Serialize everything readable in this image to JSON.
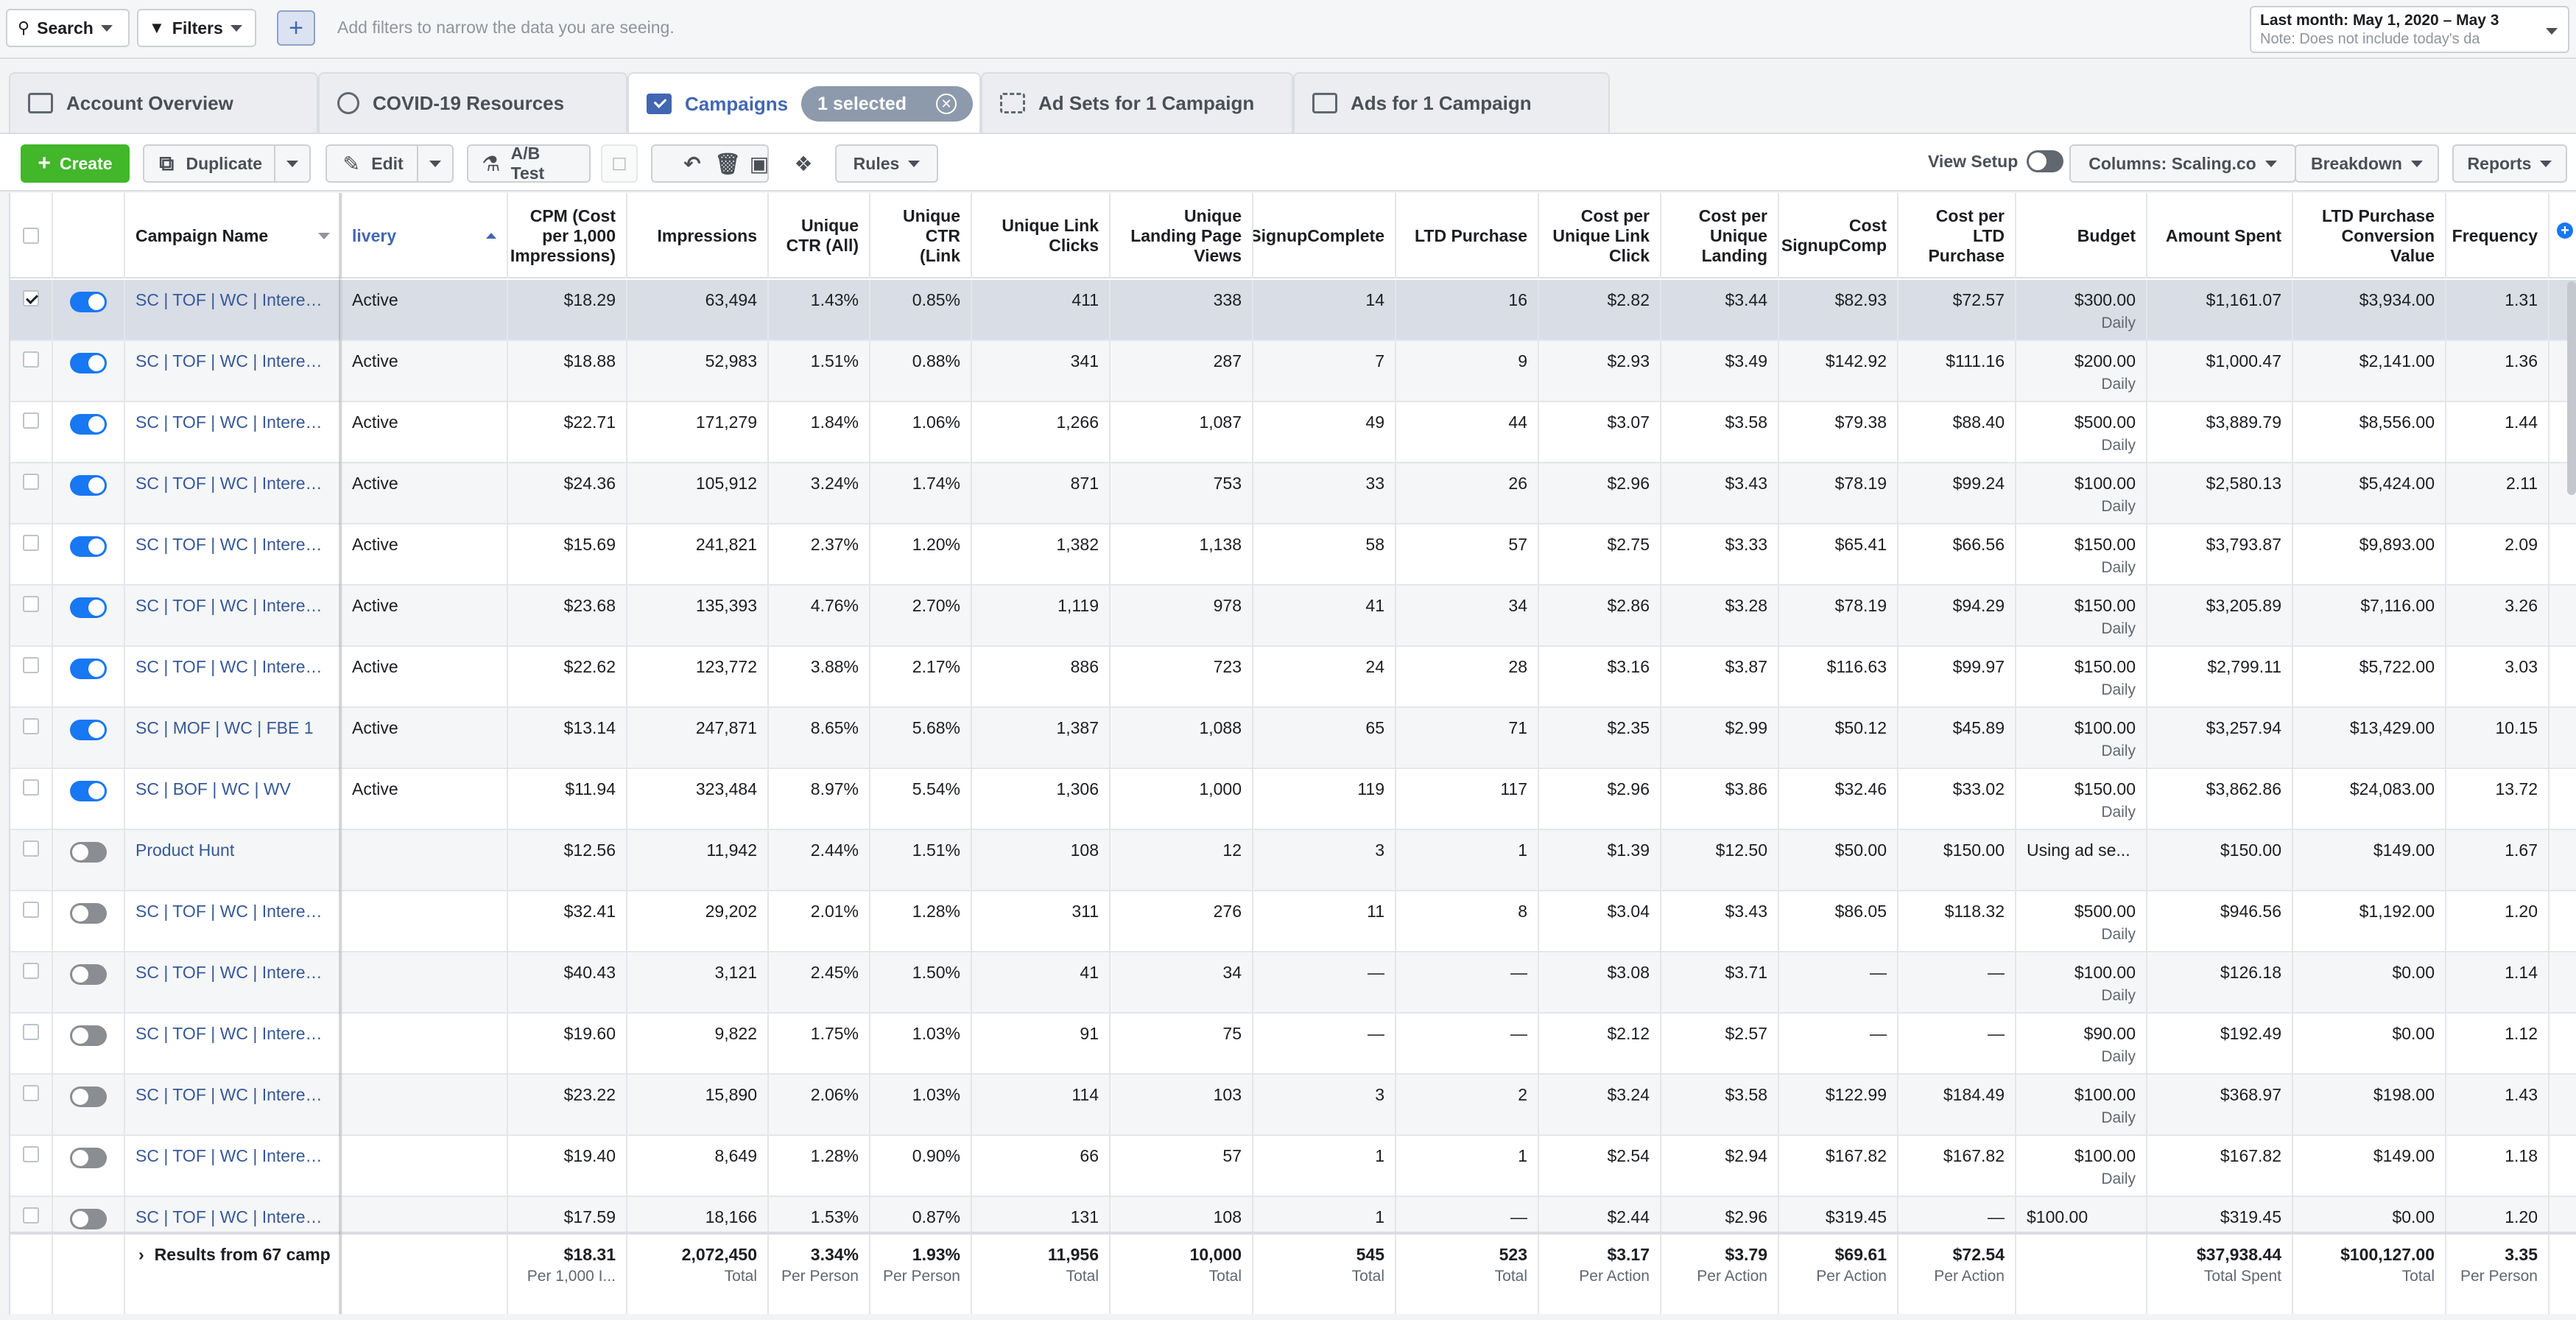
{
  "filterbar": {
    "search_label": "Search",
    "filters_label": "Filters",
    "hint": "Add filters to narrow the data you are seeing.",
    "date_line1": "Last month: May 1, 2020 – May 3",
    "date_line2": "Note: Does not include today's da"
  },
  "tabs": {
    "account_overview": "Account Overview",
    "covid": "COVID-19 Resources",
    "campaigns": "Campaigns",
    "selected": "1 selected",
    "adsets": "Ad Sets for 1 Campaign",
    "ads": "Ads for 1 Campaign"
  },
  "toolbar": {
    "create": "Create",
    "duplicate": "Duplicate",
    "edit": "Edit",
    "ab_test": "A/B Test",
    "rules": "Rules",
    "view_setup": "View Setup",
    "columns": "Columns: Scaling.co",
    "breakdown": "Breakdown",
    "reports": "Reports"
  },
  "headers": {
    "campaign_name": "Campaign Name",
    "delivery": "livery",
    "cpm": "CPM (Cost per 1,000 Impressions)",
    "impressions": "Impressions",
    "unique_ctr_all": "Unique CTR (All)",
    "unique_ctr_link": "Unique CTR (Link",
    "unique_link_clicks": "Unique Link Clicks",
    "unique_lpv": "Unique Landing Page Views",
    "signup": "SignupComplete",
    "ltd_purchase": "LTD Purchase",
    "cpu_link_click": "Cost per Unique Link Click",
    "cpu_landing": "Cost per Unique Landing",
    "cost_signup": "Cost SignupComp",
    "cost_ltd": "Cost per LTD Purchase",
    "budget": "Budget",
    "amount_spent": "Amount Spent",
    "ltd_conv_value": "LTD Purchase Conversion Value",
    "frequency": "Frequency"
  },
  "rows": [
    {
      "name": "SC | TOF | WC | Interest...",
      "on": true,
      "checked": true,
      "delivery": "Active",
      "cpm": "$18.29",
      "imp": "63,494",
      "ctr_all": "1.43%",
      "ctr_link": "0.85%",
      "ulc": "411",
      "ulpv": "338",
      "signup": "14",
      "ltd": "16",
      "cpulc": "$2.82",
      "cpul": "$3.44",
      "csign": "$82.93",
      "cltd": "$72.57",
      "budget": "$300.00",
      "budget_sub": "Daily",
      "spent": "$1,161.07",
      "conv": "$3,934.00",
      "freq": "1.31"
    },
    {
      "name": "SC | TOF | WC | Interest...",
      "on": true,
      "checked": false,
      "delivery": "Active",
      "cpm": "$18.88",
      "imp": "52,983",
      "ctr_all": "1.51%",
      "ctr_link": "0.88%",
      "ulc": "341",
      "ulpv": "287",
      "signup": "7",
      "ltd": "9",
      "cpulc": "$2.93",
      "cpul": "$3.49",
      "csign": "$142.92",
      "cltd": "$111.16",
      "budget": "$200.00",
      "budget_sub": "Daily",
      "spent": "$1,000.47",
      "conv": "$2,141.00",
      "freq": "1.36"
    },
    {
      "name": "SC | TOF | WC | Interest...",
      "on": true,
      "checked": false,
      "delivery": "Active",
      "cpm": "$22.71",
      "imp": "171,279",
      "ctr_all": "1.84%",
      "ctr_link": "1.06%",
      "ulc": "1,266",
      "ulpv": "1,087",
      "signup": "49",
      "ltd": "44",
      "cpulc": "$3.07",
      "cpul": "$3.58",
      "csign": "$79.38",
      "cltd": "$88.40",
      "budget": "$500.00",
      "budget_sub": "Daily",
      "spent": "$3,889.79",
      "conv": "$8,556.00",
      "freq": "1.44"
    },
    {
      "name": "SC | TOF | WC | Interest...",
      "on": true,
      "checked": false,
      "delivery": "Active",
      "cpm": "$24.36",
      "imp": "105,912",
      "ctr_all": "3.24%",
      "ctr_link": "1.74%",
      "ulc": "871",
      "ulpv": "753",
      "signup": "33",
      "ltd": "26",
      "cpulc": "$2.96",
      "cpul": "$3.43",
      "csign": "$78.19",
      "cltd": "$99.24",
      "budget": "$100.00",
      "budget_sub": "Daily",
      "spent": "$2,580.13",
      "conv": "$5,424.00",
      "freq": "2.11"
    },
    {
      "name": "SC | TOF | WC | Interest...",
      "on": true,
      "checked": false,
      "delivery": "Active",
      "cpm": "$15.69",
      "imp": "241,821",
      "ctr_all": "2.37%",
      "ctr_link": "1.20%",
      "ulc": "1,382",
      "ulpv": "1,138",
      "signup": "58",
      "ltd": "57",
      "cpulc": "$2.75",
      "cpul": "$3.33",
      "csign": "$65.41",
      "cltd": "$66.56",
      "budget": "$150.00",
      "budget_sub": "Daily",
      "spent": "$3,793.87",
      "conv": "$9,893.00",
      "freq": "2.09"
    },
    {
      "name": "SC | TOF | WC | Interest...",
      "on": true,
      "checked": false,
      "delivery": "Active",
      "cpm": "$23.68",
      "imp": "135,393",
      "ctr_all": "4.76%",
      "ctr_link": "2.70%",
      "ulc": "1,119",
      "ulpv": "978",
      "signup": "41",
      "ltd": "34",
      "cpulc": "$2.86",
      "cpul": "$3.28",
      "csign": "$78.19",
      "cltd": "$94.29",
      "budget": "$150.00",
      "budget_sub": "Daily",
      "spent": "$3,205.89",
      "conv": "$7,116.00",
      "freq": "3.26"
    },
    {
      "name": "SC | TOF | WC | Interest...",
      "on": true,
      "checked": false,
      "delivery": "Active",
      "cpm": "$22.62",
      "imp": "123,772",
      "ctr_all": "3.88%",
      "ctr_link": "2.17%",
      "ulc": "886",
      "ulpv": "723",
      "signup": "24",
      "ltd": "28",
      "cpulc": "$3.16",
      "cpul": "$3.87",
      "csign": "$116.63",
      "cltd": "$99.97",
      "budget": "$150.00",
      "budget_sub": "Daily",
      "spent": "$2,799.11",
      "conv": "$5,722.00",
      "freq": "3.03"
    },
    {
      "name": "SC | MOF | WC | FBE 1",
      "on": true,
      "checked": false,
      "delivery": "Active",
      "cpm": "$13.14",
      "imp": "247,871",
      "ctr_all": "8.65%",
      "ctr_link": "5.68%",
      "ulc": "1,387",
      "ulpv": "1,088",
      "signup": "65",
      "ltd": "71",
      "cpulc": "$2.35",
      "cpul": "$2.99",
      "csign": "$50.12",
      "cltd": "$45.89",
      "budget": "$100.00",
      "budget_sub": "Daily",
      "spent": "$3,257.94",
      "conv": "$13,429.00",
      "freq": "10.15"
    },
    {
      "name": "SC | BOF | WC | WV",
      "on": true,
      "checked": false,
      "delivery": "Active",
      "cpm": "$11.94",
      "imp": "323,484",
      "ctr_all": "8.97%",
      "ctr_link": "5.54%",
      "ulc": "1,306",
      "ulpv": "1,000",
      "signup": "119",
      "ltd": "117",
      "cpulc": "$2.96",
      "cpul": "$3.86",
      "csign": "$32.46",
      "cltd": "$33.02",
      "budget": "$150.00",
      "budget_sub": "Daily",
      "spent": "$3,862.86",
      "conv": "$24,083.00",
      "freq": "13.72"
    },
    {
      "name": "Product Hunt",
      "on": false,
      "checked": false,
      "delivery": "",
      "cpm": "$12.56",
      "imp": "11,942",
      "ctr_all": "2.44%",
      "ctr_link": "1.51%",
      "ulc": "108",
      "ulpv": "12",
      "signup": "3",
      "ltd": "1",
      "cpulc": "$1.39",
      "cpul": "$12.50",
      "csign": "$50.00",
      "cltd": "$150.00",
      "budget": "Using ad se...",
      "budget_sub": "",
      "spent": "$150.00",
      "conv": "$149.00",
      "freq": "1.67"
    },
    {
      "name": "SC | TOF | WC | Interest...",
      "on": false,
      "checked": false,
      "delivery": "",
      "cpm": "$32.41",
      "imp": "29,202",
      "ctr_all": "2.01%",
      "ctr_link": "1.28%",
      "ulc": "311",
      "ulpv": "276",
      "signup": "11",
      "ltd": "8",
      "cpulc": "$3.04",
      "cpul": "$3.43",
      "csign": "$86.05",
      "cltd": "$118.32",
      "budget": "$500.00",
      "budget_sub": "Daily",
      "spent": "$946.56",
      "conv": "$1,192.00",
      "freq": "1.20"
    },
    {
      "name": "SC | TOF | WC | Interest...",
      "on": false,
      "checked": false,
      "delivery": "",
      "cpm": "$40.43",
      "imp": "3,121",
      "ctr_all": "2.45%",
      "ctr_link": "1.50%",
      "ulc": "41",
      "ulpv": "34",
      "signup": "—",
      "ltd": "—",
      "cpulc": "$3.08",
      "cpul": "$3.71",
      "csign": "—",
      "cltd": "—",
      "budget": "$100.00",
      "budget_sub": "Daily",
      "spent": "$126.18",
      "conv": "$0.00",
      "freq": "1.14"
    },
    {
      "name": "SC | TOF | WC | Interest...",
      "on": false,
      "checked": false,
      "delivery": "",
      "cpm": "$19.60",
      "imp": "9,822",
      "ctr_all": "1.75%",
      "ctr_link": "1.03%",
      "ulc": "91",
      "ulpv": "75",
      "signup": "—",
      "ltd": "—",
      "cpulc": "$2.12",
      "cpul": "$2.57",
      "csign": "—",
      "cltd": "—",
      "budget": "$90.00",
      "budget_sub": "Daily",
      "spent": "$192.49",
      "conv": "$0.00",
      "freq": "1.12"
    },
    {
      "name": "SC | TOF | WC | Interest...",
      "on": false,
      "checked": false,
      "delivery": "",
      "cpm": "$23.22",
      "imp": "15,890",
      "ctr_all": "2.06%",
      "ctr_link": "1.03%",
      "ulc": "114",
      "ulpv": "103",
      "signup": "3",
      "ltd": "2",
      "cpulc": "$3.24",
      "cpul": "$3.58",
      "csign": "$122.99",
      "cltd": "$184.49",
      "budget": "$100.00",
      "budget_sub": "Daily",
      "spent": "$368.97",
      "conv": "$198.00",
      "freq": "1.43"
    },
    {
      "name": "SC | TOF | WC | Interest...",
      "on": false,
      "checked": false,
      "delivery": "",
      "cpm": "$19.40",
      "imp": "8,649",
      "ctr_all": "1.28%",
      "ctr_link": "0.90%",
      "ulc": "66",
      "ulpv": "57",
      "signup": "1",
      "ltd": "1",
      "cpulc": "$2.54",
      "cpul": "$2.94",
      "csign": "$167.82",
      "cltd": "$167.82",
      "budget": "$100.00",
      "budget_sub": "Daily",
      "spent": "$167.82",
      "conv": "$149.00",
      "freq": "1.18"
    },
    {
      "name": "SC | TOF | WC | Interest...",
      "on": false,
      "checked": false,
      "delivery": "",
      "cpm": "$17.59",
      "imp": "18,166",
      "ctr_all": "1.53%",
      "ctr_link": "0.87%",
      "ulc": "131",
      "ulpv": "108",
      "signup": "1",
      "ltd": "—",
      "cpulc": "$2.44",
      "cpul": "$2.96",
      "csign": "$319.45",
      "cltd": "—",
      "budget": "$100.00",
      "budget_sub": "",
      "spent": "$319.45",
      "conv": "$0.00",
      "freq": "1.20"
    }
  ],
  "footer": {
    "results": "Results from 67 camp",
    "cpm": "$18.31",
    "cpm_sub": "Per 1,000 I...",
    "imp": "2,072,450",
    "imp_sub": "Total",
    "ctr_all": "3.34%",
    "ctr_all_sub": "Per Person",
    "ctr_link": "1.93%",
    "ctr_link_sub": "Per Person",
    "ulc": "11,956",
    "ulc_sub": "Total",
    "ulpv": "10,000",
    "ulpv_sub": "Total",
    "signup": "545",
    "signup_sub": "Total",
    "ltd": "523",
    "ltd_sub": "Total",
    "cpulc": "$3.17",
    "cpulc_sub": "Per Action",
    "cpul": "$3.79",
    "cpul_sub": "Per Action",
    "csign": "$69.61",
    "csign_sub": "Per Action",
    "cltd": "$72.54",
    "cltd_sub": "Per Action",
    "spent": "$37,938.44",
    "spent_sub": "Total Spent",
    "conv": "$100,127.00",
    "conv_sub": "Total",
    "freq": "3.35",
    "freq_sub": "Per Person"
  },
  "colors": {
    "accent": "#4267b2",
    "create": "#42b72a",
    "toggle_on": "#1877f2",
    "link": "#365899"
  }
}
